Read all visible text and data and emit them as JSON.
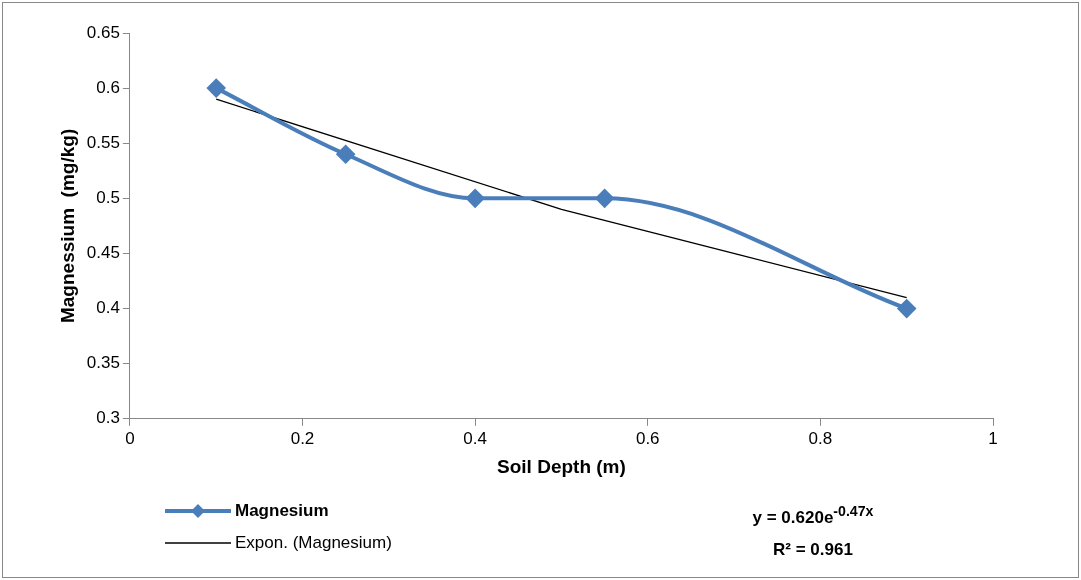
{
  "chart_data": {
    "type": "line",
    "xlabel": "Soil Depth (m)",
    "ylabel": "Magnessium  (mg/kg)",
    "xlim": [
      0,
      1
    ],
    "xticks": [
      0,
      0.2,
      0.4,
      0.6,
      0.8,
      1
    ],
    "ylim": [
      0.3,
      0.65
    ],
    "yticks": [
      0.3,
      0.35,
      0.4,
      0.45,
      0.5,
      0.55,
      0.6,
      0.65
    ],
    "x": [
      0.1,
      0.25,
      0.4,
      0.55,
      0.9
    ],
    "series": [
      {
        "name": "Magnesium",
        "color": "#4a7ebb",
        "values": [
          0.6,
          0.54,
          0.5,
          0.5,
          0.4
        ]
      },
      {
        "name": "Expon. (Magnesium)",
        "color": "#000000",
        "type": "line",
        "x": [
          0.1,
          0.5,
          0.9
        ],
        "values": [
          0.59,
          0.49,
          0.41
        ],
        "marker": "none"
      }
    ],
    "annotations": [
      "y = 0.620e$^{-0.47x}$",
      "R² = 0.961"
    ],
    "marker": "diamond",
    "grid": false,
    "legend": "bottom left",
    "line_style": "solid"
  }
}
